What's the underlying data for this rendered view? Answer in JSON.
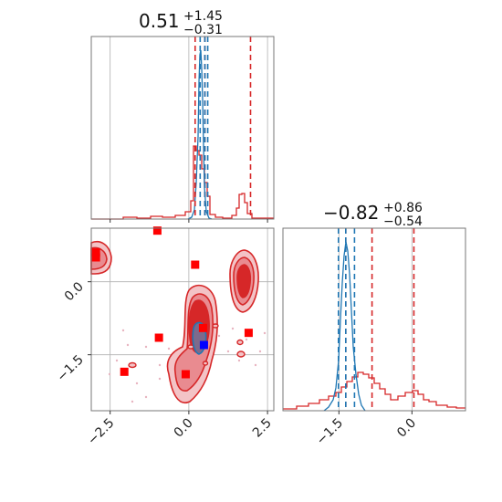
{
  "titles": {
    "p1": {
      "main": "0.51",
      "sup": "+1.45",
      "sub": "−0.31"
    },
    "p2": {
      "main": "−0.82",
      "sup": "+0.86",
      "sub": "−0.54"
    }
  },
  "colors": {
    "red": "#d62728",
    "blue": "#1f77b4",
    "marker": "#ff0000",
    "marker_blue": "#0000ff",
    "grid": "#b0b0b0",
    "axis": "#777777"
  },
  "chart_data": {
    "type": "corner",
    "param1_range": [
      -3.1,
      2.7
    ],
    "param2_range": [
      -2.65,
      1.1
    ],
    "param1_ticks": [
      -2.5,
      0.0,
      2.5
    ],
    "param1_tick_labels": [
      "−2.5",
      "0.0",
      "2.5"
    ],
    "param2_ticks": [
      -1.5,
      0.0
    ],
    "param2_tick_labels": [
      "−1.5",
      "0.0"
    ],
    "param1_lines": {
      "red": [
        0.2,
        0.51,
        1.96
      ],
      "blue": [
        0.36,
        0.51,
        0.6
      ]
    },
    "param2_lines": {
      "red": [
        -1.36,
        -0.82,
        0.04
      ],
      "blue": [
        -1.51,
        -1.36,
        -1.18
      ]
    },
    "markers": [
      {
        "x": -1.0,
        "y": 1.05,
        "color": "red"
      },
      {
        "x": -2.95,
        "y": 0.6,
        "color": "red"
      },
      {
        "x": -2.95,
        "y": 0.5,
        "color": "red"
      },
      {
        "x": 0.2,
        "y": 0.35,
        "color": "red"
      },
      {
        "x": 0.45,
        "y": -0.95,
        "color": "red"
      },
      {
        "x": 1.9,
        "y": -1.05,
        "color": "red"
      },
      {
        "x": -0.95,
        "y": -1.15,
        "color": "red"
      },
      {
        "x": -2.05,
        "y": -1.85,
        "color": "red"
      },
      {
        "x": -0.1,
        "y": -1.9,
        "color": "red"
      },
      {
        "x": 0.48,
        "y": -1.3,
        "color": "blue"
      }
    ]
  }
}
